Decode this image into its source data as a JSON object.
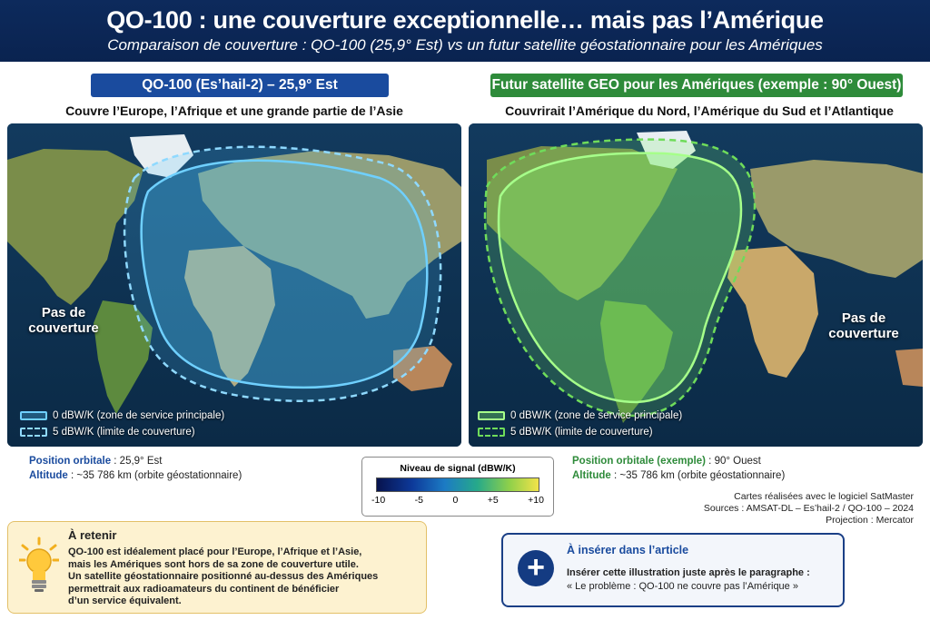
{
  "header": {
    "title": "QO-100 : une couverture exceptionnelle… mais pas l’Amérique",
    "subtitle": "Comparaison de couverture : QO-100 (25,9° Est) vs un futur satellite géostationnaire pour les Amériques"
  },
  "left_panel": {
    "badge": "QO-100 (Es’hail-2) – 25,9° Est",
    "caption": "Couvre l’Europe, l’Afrique et une grande partie de l’Asie",
    "no_coverage": "Pas de couverture",
    "legend": [
      {
        "label": "0 dBW/K (zone de service principale)",
        "style": "solid"
      },
      {
        "label": "5 dBW/K (limite de couverture)",
        "style": "dashed"
      }
    ],
    "position_key": "Position orbitale",
    "position_value": " : 25,9° Est",
    "altitude_key": "Altitude",
    "altitude_value": " : ~35 786 km (orbite géostationnaire)",
    "color": "#4fc3f7"
  },
  "right_panel": {
    "badge": "Futur satellite GEO pour les Amériques (exemple : 90° Ouest)",
    "caption": "Couvrirait l’Amérique du Nord, l’Amérique du Sud et l’Atlantique",
    "no_coverage": "Pas de couverture",
    "legend": [
      {
        "label": "0 dBW/K (zone de service principale)",
        "style": "solid"
      },
      {
        "label": "5 dBW/K (limite de couverture)",
        "style": "dashed"
      }
    ],
    "position_key": "Position orbitale (exemple)",
    "position_value": " : 90° Ouest",
    "altitude_key": "Altitude",
    "altitude_value": " : ~35 786 km (orbite géostationnaire)",
    "color": "#7ef06a"
  },
  "scale": {
    "title": "Niveau de signal (dBW/K)",
    "ticks": [
      "-10",
      "-5",
      "0",
      "+5",
      "+10"
    ]
  },
  "credits": {
    "line1": "Cartes réalisées avec le logiciel SatMaster",
    "line2": "Sources : AMSAT-DL – Es’hail-2 / QO-100 – 2024",
    "line3": "Projection : Mercator"
  },
  "retenir": {
    "title": "À retenir",
    "lines": [
      "QO-100 est idéalement placé pour l’Europe, l’Afrique et l’Asie,",
      "mais les Amériques sont hors de sa zone de couverture utile.",
      "Un satellite géostationnaire positionné au-dessus des Amériques",
      "permettrait aux radioamateurs du continent de bénéficier",
      "d’un service équivalent."
    ],
    "icon": "lightbulb-icon"
  },
  "inserer": {
    "title": "À insérer dans l’article",
    "line1": "Insérer cette illustration juste après le paragraphe :",
    "line2": "« Le problème : QO-100 ne couvre pas l’Amérique »",
    "icon": "plus-icon"
  }
}
